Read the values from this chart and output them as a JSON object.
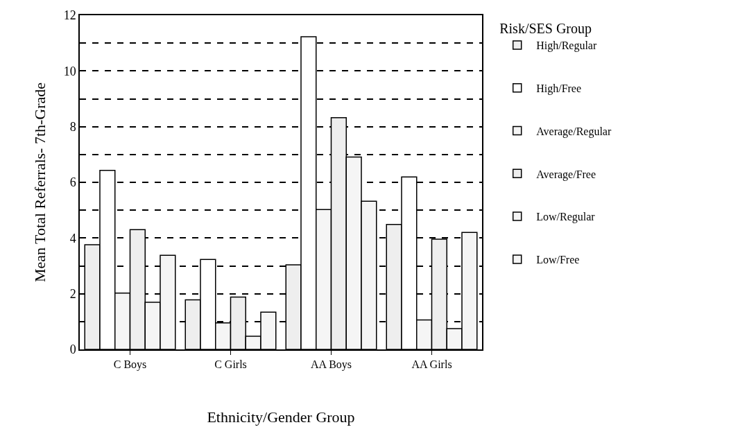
{
  "chart_data": {
    "type": "bar",
    "xlabel": "Ethnicity/Gender Group",
    "ylabel": "Mean Total Referrals- 7th-Grade",
    "legend_title": "Risk/SES Group",
    "categories": [
      "C Boys",
      "C Girls",
      "AA Boys",
      "AA Girls"
    ],
    "series": [
      {
        "name": "High/Regular",
        "color": "#eeeeee",
        "values": [
          3.76,
          1.78,
          3.04,
          4.49
        ]
      },
      {
        "name": "High/Free",
        "color": "#ffffff",
        "values": [
          6.43,
          3.23,
          11.23,
          6.19
        ]
      },
      {
        "name": "Average/Regular",
        "color": "#f5f5f5",
        "values": [
          2.02,
          0.95,
          5.02,
          1.06
        ]
      },
      {
        "name": "Average/Free",
        "color": "#eeeeee",
        "values": [
          4.3,
          1.88,
          8.32,
          3.96
        ]
      },
      {
        "name": "Low/Regular",
        "color": "#f5f5f5",
        "values": [
          1.69,
          0.47,
          6.91,
          0.75
        ]
      },
      {
        "name": "Low/Free",
        "color": "#f5f5f5",
        "values": [
          3.38,
          1.34,
          5.32,
          4.2
        ]
      }
    ],
    "ylim": [
      0,
      12
    ],
    "yticks": [
      0,
      {
        "value": 1,
        "label": null
      },
      2,
      {
        "value": 3,
        "label": null
      },
      4,
      {
        "value": 5,
        "label": null
      },
      6,
      {
        "value": 7,
        "label": null
      },
      8,
      {
        "value": 9,
        "label": null
      },
      10,
      {
        "value": 11,
        "label": null
      },
      12
    ],
    "grid": "y",
    "line_style": "dashed",
    "legend": "right"
  }
}
